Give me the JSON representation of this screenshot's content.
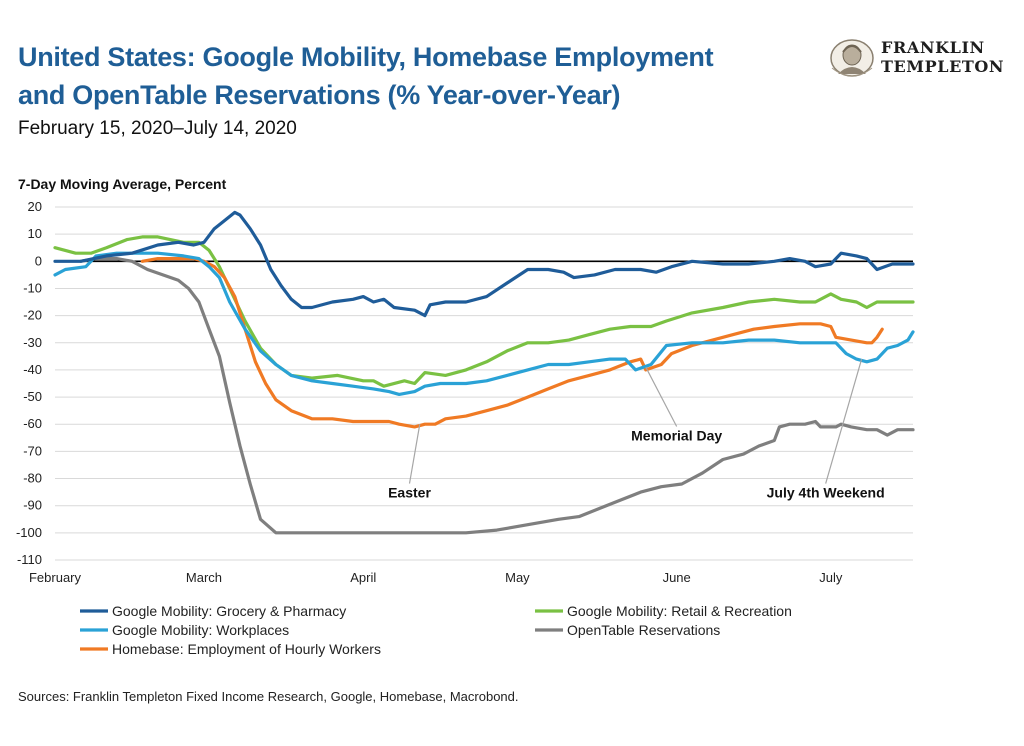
{
  "header": {
    "title_line1": "United States: Google Mobility, Homebase Employment",
    "title_line2": "and OpenTable Reservations (% Year-over-Year)",
    "subtitle": "February 15, 2020–July 14, 2020"
  },
  "logo": {
    "line1": "FRANKLIN",
    "line2": "TEMPLETON"
  },
  "footer": {
    "sources": "Sources: Franklin Templeton Fixed Income Research, Google, Homebase, Macrobond."
  },
  "chart_data": {
    "type": "line",
    "ylabel": "7-Day Moving Average, Percent",
    "ylim": [
      -110,
      20
    ],
    "yticks": [
      20,
      10,
      0,
      -10,
      -20,
      -30,
      -40,
      -50,
      -60,
      -70,
      -80,
      -90,
      -100,
      -110
    ],
    "xlim": [
      0,
      167
    ],
    "xticks": [
      {
        "label": "February",
        "x": 0
      },
      {
        "label": "March",
        "x": 29
      },
      {
        "label": "April",
        "x": 60
      },
      {
        "label": "May",
        "x": 90
      },
      {
        "label": "June",
        "x": 121
      },
      {
        "label": "July",
        "x": 151
      }
    ],
    "x_unit": "days since February 1, 2020",
    "zero_line": true,
    "annotations": [
      {
        "text": "Easter",
        "point": [
          71,
          -60
        ],
        "label": [
          69,
          -87
        ]
      },
      {
        "text": "Memorial Day",
        "point": [
          115,
          -39
        ],
        "label": [
          121,
          -66
        ]
      },
      {
        "text": "July 4th Weekend",
        "point": [
          157,
          -36
        ],
        "label": [
          150,
          -87
        ]
      }
    ],
    "series": [
      {
        "name": "Google Mobility: Grocery & Pharmacy",
        "color": "#1f5c99",
        "points": [
          [
            0,
            0
          ],
          [
            5,
            0
          ],
          [
            10,
            2
          ],
          [
            15,
            3
          ],
          [
            20,
            6
          ],
          [
            24,
            7
          ],
          [
            27,
            6
          ],
          [
            29,
            7
          ],
          [
            31,
            12
          ],
          [
            33,
            15
          ],
          [
            35,
            18
          ],
          [
            36,
            17
          ],
          [
            38,
            12
          ],
          [
            40,
            6
          ],
          [
            42,
            -3
          ],
          [
            44,
            -9
          ],
          [
            46,
            -14
          ],
          [
            48,
            -17
          ],
          [
            50,
            -17
          ],
          [
            54,
            -15
          ],
          [
            58,
            -14
          ],
          [
            60,
            -13
          ],
          [
            62,
            -15
          ],
          [
            64,
            -14
          ],
          [
            66,
            -17
          ],
          [
            70,
            -18
          ],
          [
            72,
            -20
          ],
          [
            73,
            -16
          ],
          [
            76,
            -15
          ],
          [
            80,
            -15
          ],
          [
            84,
            -13
          ],
          [
            88,
            -8
          ],
          [
            92,
            -3
          ],
          [
            96,
            -3
          ],
          [
            99,
            -4
          ],
          [
            101,
            -6
          ],
          [
            105,
            -5
          ],
          [
            109,
            -3
          ],
          [
            114,
            -3
          ],
          [
            117,
            -4
          ],
          [
            120,
            -2
          ],
          [
            124,
            0
          ],
          [
            130,
            -1
          ],
          [
            135,
            -1
          ],
          [
            140,
            0
          ],
          [
            143,
            1
          ],
          [
            146,
            0
          ],
          [
            148,
            -2
          ],
          [
            151,
            -1
          ],
          [
            153,
            3
          ],
          [
            156,
            2
          ],
          [
            158,
            1
          ],
          [
            160,
            -3
          ],
          [
            163,
            -1
          ],
          [
            166,
            -1
          ],
          [
            167,
            -1
          ]
        ]
      },
      {
        "name": "Google Mobility: Retail & Recreation",
        "color": "#7ac143",
        "points": [
          [
            0,
            5
          ],
          [
            4,
            3
          ],
          [
            7,
            3
          ],
          [
            10,
            5
          ],
          [
            14,
            8
          ],
          [
            17,
            9
          ],
          [
            20,
            9
          ],
          [
            25,
            7
          ],
          [
            28,
            7
          ],
          [
            30,
            4
          ],
          [
            32,
            -2
          ],
          [
            34,
            -10
          ],
          [
            37,
            -22
          ],
          [
            40,
            -32
          ],
          [
            43,
            -38
          ],
          [
            46,
            -42
          ],
          [
            50,
            -43
          ],
          [
            55,
            -42
          ],
          [
            60,
            -44
          ],
          [
            62,
            -44
          ],
          [
            64,
            -46
          ],
          [
            68,
            -44
          ],
          [
            70,
            -45
          ],
          [
            72,
            -41
          ],
          [
            76,
            -42
          ],
          [
            80,
            -40
          ],
          [
            84,
            -37
          ],
          [
            88,
            -33
          ],
          [
            92,
            -30
          ],
          [
            96,
            -30
          ],
          [
            100,
            -29
          ],
          [
            104,
            -27
          ],
          [
            108,
            -25
          ],
          [
            112,
            -24
          ],
          [
            116,
            -24
          ],
          [
            119,
            -22
          ],
          [
            124,
            -19
          ],
          [
            130,
            -17
          ],
          [
            135,
            -15
          ],
          [
            140,
            -14
          ],
          [
            145,
            -15
          ],
          [
            148,
            -15
          ],
          [
            151,
            -12
          ],
          [
            153,
            -14
          ],
          [
            156,
            -15
          ],
          [
            158,
            -17
          ],
          [
            160,
            -15
          ],
          [
            163,
            -15
          ],
          [
            167,
            -15
          ]
        ]
      },
      {
        "name": "Google Mobility: Workplaces",
        "color": "#2aa2d6",
        "points": [
          [
            0,
            -5
          ],
          [
            2,
            -3
          ],
          [
            6,
            -2
          ],
          [
            8,
            2
          ],
          [
            12,
            3
          ],
          [
            15,
            3
          ],
          [
            20,
            3
          ],
          [
            25,
            2
          ],
          [
            28,
            1
          ],
          [
            30,
            -2
          ],
          [
            32,
            -6
          ],
          [
            34,
            -15
          ],
          [
            37,
            -25
          ],
          [
            40,
            -33
          ],
          [
            43,
            -38
          ],
          [
            46,
            -42
          ],
          [
            50,
            -44
          ],
          [
            54,
            -45
          ],
          [
            58,
            -46
          ],
          [
            62,
            -47
          ],
          [
            65,
            -48
          ],
          [
            67,
            -49
          ],
          [
            70,
            -48
          ],
          [
            72,
            -46
          ],
          [
            75,
            -45
          ],
          [
            80,
            -45
          ],
          [
            84,
            -44
          ],
          [
            88,
            -42
          ],
          [
            92,
            -40
          ],
          [
            96,
            -38
          ],
          [
            100,
            -38
          ],
          [
            104,
            -37
          ],
          [
            108,
            -36
          ],
          [
            111,
            -36
          ],
          [
            113,
            -40
          ],
          [
            116,
            -38
          ],
          [
            119,
            -31
          ],
          [
            124,
            -30
          ],
          [
            130,
            -30
          ],
          [
            135,
            -29
          ],
          [
            140,
            -29
          ],
          [
            145,
            -30
          ],
          [
            148,
            -30
          ],
          [
            152,
            -30
          ],
          [
            154,
            -34
          ],
          [
            156,
            -36
          ],
          [
            158,
            -37
          ],
          [
            160,
            -36
          ],
          [
            162,
            -32
          ],
          [
            164,
            -31
          ],
          [
            166,
            -29
          ],
          [
            167,
            -26
          ]
        ]
      },
      {
        "name": "OpenTable Reservations",
        "color": "#7f7f7f",
        "points": [
          [
            5,
            0
          ],
          [
            8,
            1
          ],
          [
            12,
            1
          ],
          [
            15,
            0
          ],
          [
            18,
            -3
          ],
          [
            21,
            -5
          ],
          [
            24,
            -7
          ],
          [
            26,
            -10
          ],
          [
            28,
            -15
          ],
          [
            30,
            -25
          ],
          [
            32,
            -35
          ],
          [
            34,
            -52
          ],
          [
            36,
            -68
          ],
          [
            38,
            -82
          ],
          [
            40,
            -95
          ],
          [
            43,
            -100
          ],
          [
            50,
            -100
          ],
          [
            60,
            -100
          ],
          [
            70,
            -100
          ],
          [
            80,
            -100
          ],
          [
            86,
            -99
          ],
          [
            92,
            -97
          ],
          [
            98,
            -95
          ],
          [
            102,
            -94
          ],
          [
            106,
            -91
          ],
          [
            110,
            -88
          ],
          [
            114,
            -85
          ],
          [
            118,
            -83
          ],
          [
            122,
            -82
          ],
          [
            126,
            -78
          ],
          [
            130,
            -73
          ],
          [
            134,
            -71
          ],
          [
            137,
            -68
          ],
          [
            140,
            -66
          ],
          [
            141,
            -61
          ],
          [
            143,
            -60
          ],
          [
            146,
            -60
          ],
          [
            148,
            -59
          ],
          [
            149,
            -61
          ],
          [
            152,
            -61
          ],
          [
            153,
            -60
          ],
          [
            155,
            -61
          ],
          [
            158,
            -62
          ],
          [
            160,
            -62
          ],
          [
            162,
            -64
          ],
          [
            164,
            -62
          ],
          [
            167,
            -62
          ]
        ]
      },
      {
        "name": "Homebase: Employment of Hourly Workers",
        "color": "#f07a24",
        "points": [
          [
            17,
            0
          ],
          [
            20,
            1
          ],
          [
            24,
            1
          ],
          [
            27,
            1
          ],
          [
            29,
            0
          ],
          [
            31,
            -2
          ],
          [
            33,
            -6
          ],
          [
            35,
            -13
          ],
          [
            37,
            -25
          ],
          [
            39,
            -37
          ],
          [
            41,
            -45
          ],
          [
            43,
            -51
          ],
          [
            46,
            -55
          ],
          [
            50,
            -58
          ],
          [
            54,
            -58
          ],
          [
            58,
            -59
          ],
          [
            62,
            -59
          ],
          [
            65,
            -59
          ],
          [
            67,
            -60
          ],
          [
            70,
            -61
          ],
          [
            72,
            -60
          ],
          [
            74,
            -60
          ],
          [
            76,
            -58
          ],
          [
            80,
            -57
          ],
          [
            84,
            -55
          ],
          [
            88,
            -53
          ],
          [
            92,
            -50
          ],
          [
            96,
            -47
          ],
          [
            100,
            -44
          ],
          [
            104,
            -42
          ],
          [
            108,
            -40
          ],
          [
            112,
            -37
          ],
          [
            114,
            -36
          ],
          [
            115,
            -40
          ],
          [
            118,
            -38
          ],
          [
            120,
            -34
          ],
          [
            124,
            -31
          ],
          [
            128,
            -29
          ],
          [
            132,
            -27
          ],
          [
            136,
            -25
          ],
          [
            140,
            -24
          ],
          [
            145,
            -23
          ],
          [
            149,
            -23
          ],
          [
            151,
            -24
          ],
          [
            152,
            -28
          ],
          [
            155,
            -29
          ],
          [
            158,
            -30
          ],
          [
            159,
            -30
          ],
          [
            160,
            -28
          ],
          [
            161,
            -25
          ]
        ]
      }
    ]
  }
}
